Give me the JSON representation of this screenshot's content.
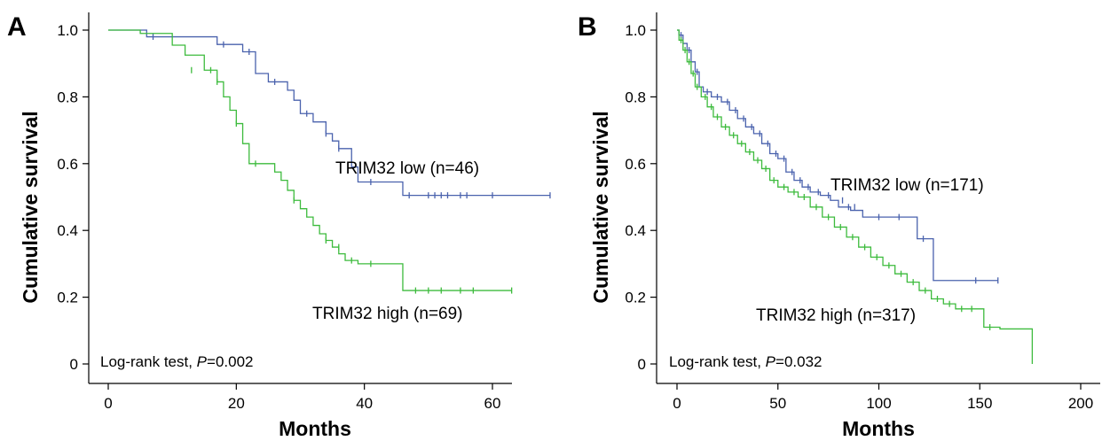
{
  "colors": {
    "low": "#4a62ad",
    "high": "#3dbb3d",
    "axis": "#000000"
  },
  "chart_data": [
    {
      "type": "line",
      "panel": "A",
      "xlabel": "Months",
      "ylabel": "Cumulative survival",
      "xlim": [
        0,
        69
      ],
      "ylim": [
        0,
        1.0
      ],
      "xticks": [
        "0",
        "20",
        "40",
        "60"
      ],
      "yticks": [
        "0",
        "0.2",
        "0.4",
        "0.6",
        "0.8",
        "1.0"
      ],
      "annotation": {
        "prefix": "Log-rank test, ",
        "p_symbol": "P",
        "p_value": "=0.002"
      },
      "series": [
        {
          "name": "TRIM32 low (n=46)",
          "color_key": "low",
          "steps": [
            [
              0,
              1.0
            ],
            [
              6,
              0.98
            ],
            [
              17,
              0.957
            ],
            [
              21,
              0.935
            ],
            [
              23,
              0.87
            ],
            [
              25,
              0.845
            ],
            [
              28,
              0.82
            ],
            [
              29,
              0.79
            ],
            [
              30,
              0.75
            ],
            [
              32,
              0.725
            ],
            [
              34,
              0.69
            ],
            [
              35,
              0.668
            ],
            [
              36,
              0.645
            ],
            [
              38,
              0.59
            ],
            [
              39,
              0.545
            ],
            [
              46,
              0.505
            ],
            [
              69,
              0.505
            ]
          ],
          "censors": [
            [
              7,
              0.98
            ],
            [
              18,
              0.957
            ],
            [
              22,
              0.935
            ],
            [
              26,
              0.845
            ],
            [
              31,
              0.75
            ],
            [
              34,
              0.69
            ],
            [
              36,
              0.645
            ],
            [
              41,
              0.545
            ],
            [
              47,
              0.505
            ],
            [
              50,
              0.505
            ],
            [
              51,
              0.505
            ],
            [
              52,
              0.505
            ],
            [
              53,
              0.505
            ],
            [
              55,
              0.505
            ],
            [
              56,
              0.505
            ],
            [
              60,
              0.505
            ],
            [
              69,
              0.505
            ]
          ],
          "label_text": "TRIM32 low (n=46)"
        },
        {
          "name": "TRIM32 high (n=69)",
          "color_key": "high",
          "steps": [
            [
              0,
              1.0
            ],
            [
              5,
              0.99
            ],
            [
              10,
              0.955
            ],
            [
              12,
              0.925
            ],
            [
              15,
              0.88
            ],
            [
              17,
              0.845
            ],
            [
              18,
              0.8
            ],
            [
              19,
              0.76
            ],
            [
              20,
              0.72
            ],
            [
              21,
              0.66
            ],
            [
              22,
              0.6
            ],
            [
              26,
              0.575
            ],
            [
              27,
              0.55
            ],
            [
              28,
              0.52
            ],
            [
              29,
              0.49
            ],
            [
              30,
              0.465
            ],
            [
              31,
              0.44
            ],
            [
              32,
              0.415
            ],
            [
              33,
              0.39
            ],
            [
              34,
              0.37
            ],
            [
              35,
              0.35
            ],
            [
              36,
              0.33
            ],
            [
              37,
              0.31
            ],
            [
              39,
              0.3
            ],
            [
              46,
              0.22
            ],
            [
              63,
              0.22
            ]
          ],
          "censors": [
            [
              13,
              0.88
            ],
            [
              16,
              0.88
            ],
            [
              17,
              0.845
            ],
            [
              20,
              0.72
            ],
            [
              23,
              0.6
            ],
            [
              29,
              0.49
            ],
            [
              34,
              0.37
            ],
            [
              36,
              0.35
            ],
            [
              38,
              0.31
            ],
            [
              41,
              0.3
            ],
            [
              48,
              0.22
            ],
            [
              50,
              0.22
            ],
            [
              52,
              0.22
            ],
            [
              55,
              0.22
            ],
            [
              57,
              0.22
            ],
            [
              63,
              0.22
            ]
          ],
          "label_text": "TRIM32 high (n=69)"
        }
      ]
    },
    {
      "type": "line",
      "panel": "B",
      "xlabel": "Months",
      "ylabel": "Cumulative survival",
      "xlim": [
        0,
        200
      ],
      "ylim": [
        0,
        1.0
      ],
      "xticks": [
        "0",
        "50",
        "100",
        "150",
        "200"
      ],
      "yticks": [
        "0",
        "0.2",
        "0.4",
        "0.6",
        "0.8",
        "1.0"
      ],
      "annotation": {
        "prefix": "Log-rank test, ",
        "p_symbol": "P",
        "p_value": "=0.032"
      },
      "series": [
        {
          "name": "TRIM32 low (n=171)",
          "color_key": "low",
          "steps": [
            [
              0,
              1.0
            ],
            [
              1,
              0.985
            ],
            [
              3,
              0.96
            ],
            [
              5,
              0.94
            ],
            [
              7,
              0.905
            ],
            [
              9,
              0.875
            ],
            [
              11,
              0.83
            ],
            [
              13,
              0.815
            ],
            [
              17,
              0.8
            ],
            [
              22,
              0.785
            ],
            [
              26,
              0.76
            ],
            [
              30,
              0.735
            ],
            [
              34,
              0.71
            ],
            [
              38,
              0.69
            ],
            [
              42,
              0.66
            ],
            [
              46,
              0.63
            ],
            [
              50,
              0.615
            ],
            [
              54,
              0.575
            ],
            [
              58,
              0.55
            ],
            [
              62,
              0.53
            ],
            [
              66,
              0.515
            ],
            [
              71,
              0.505
            ],
            [
              76,
              0.49
            ],
            [
              80,
              0.47
            ],
            [
              86,
              0.46
            ],
            [
              92,
              0.44
            ],
            [
              119,
              0.375
            ],
            [
              127,
              0.25
            ],
            [
              159,
              0.25
            ]
          ],
          "censors": [
            [
              2,
              0.985
            ],
            [
              6,
              0.94
            ],
            [
              10,
              0.875
            ],
            [
              15,
              0.815
            ],
            [
              20,
              0.8
            ],
            [
              25,
              0.785
            ],
            [
              29,
              0.76
            ],
            [
              33,
              0.735
            ],
            [
              37,
              0.71
            ],
            [
              41,
              0.69
            ],
            [
              45,
              0.66
            ],
            [
              49,
              0.63
            ],
            [
              53,
              0.615
            ],
            [
              57,
              0.575
            ],
            [
              61,
              0.55
            ],
            [
              65,
              0.53
            ],
            [
              70,
              0.515
            ],
            [
              75,
              0.505
            ],
            [
              82,
              0.49
            ],
            [
              85,
              0.47
            ],
            [
              88,
              0.47
            ],
            [
              100,
              0.44
            ],
            [
              110,
              0.44
            ],
            [
              122,
              0.375
            ],
            [
              148,
              0.25
            ],
            [
              159,
              0.25
            ]
          ],
          "label_text": "TRIM32 low (n=171)"
        },
        {
          "name": "TRIM32 high (n=317)",
          "color_key": "high",
          "steps": [
            [
              0,
              1.0
            ],
            [
              1,
              0.97
            ],
            [
              3,
              0.94
            ],
            [
              5,
              0.905
            ],
            [
              7,
              0.87
            ],
            [
              9,
              0.83
            ],
            [
              12,
              0.8
            ],
            [
              15,
              0.77
            ],
            [
              18,
              0.74
            ],
            [
              22,
              0.71
            ],
            [
              26,
              0.685
            ],
            [
              30,
              0.66
            ],
            [
              34,
              0.635
            ],
            [
              38,
              0.61
            ],
            [
              42,
              0.585
            ],
            [
              46,
              0.55
            ],
            [
              50,
              0.53
            ],
            [
              55,
              0.515
            ],
            [
              60,
              0.5
            ],
            [
              66,
              0.47
            ],
            [
              72,
              0.44
            ],
            [
              78,
              0.41
            ],
            [
              84,
              0.38
            ],
            [
              90,
              0.35
            ],
            [
              96,
              0.32
            ],
            [
              102,
              0.295
            ],
            [
              108,
              0.27
            ],
            [
              114,
              0.245
            ],
            [
              120,
              0.22
            ],
            [
              126,
              0.195
            ],
            [
              132,
              0.18
            ],
            [
              138,
              0.165
            ],
            [
              152,
              0.11
            ],
            [
              160,
              0.105
            ],
            [
              176,
              0.0
            ]
          ],
          "censors": [
            [
              2,
              0.97
            ],
            [
              4,
              0.94
            ],
            [
              6,
              0.905
            ],
            [
              8,
              0.87
            ],
            [
              10,
              0.83
            ],
            [
              14,
              0.8
            ],
            [
              17,
              0.77
            ],
            [
              20,
              0.74
            ],
            [
              24,
              0.71
            ],
            [
              28,
              0.685
            ],
            [
              32,
              0.66
            ],
            [
              36,
              0.635
            ],
            [
              40,
              0.61
            ],
            [
              44,
              0.585
            ],
            [
              48,
              0.55
            ],
            [
              53,
              0.53
            ],
            [
              58,
              0.515
            ],
            [
              63,
              0.5
            ],
            [
              69,
              0.47
            ],
            [
              75,
              0.44
            ],
            [
              81,
              0.41
            ],
            [
              87,
              0.38
            ],
            [
              93,
              0.35
            ],
            [
              99,
              0.32
            ],
            [
              105,
              0.295
            ],
            [
              111,
              0.27
            ],
            [
              117,
              0.245
            ],
            [
              123,
              0.22
            ],
            [
              129,
              0.195
            ],
            [
              135,
              0.18
            ],
            [
              141,
              0.165
            ],
            [
              146,
              0.165
            ],
            [
              155,
              0.11
            ]
          ],
          "label_text": "TRIM32 high (n=317)"
        }
      ]
    }
  ]
}
